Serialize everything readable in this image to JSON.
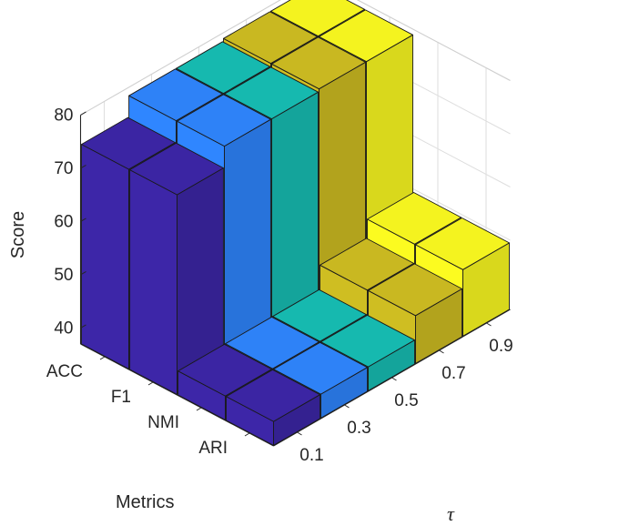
{
  "chart_data": {
    "type": "bar3d",
    "title": "",
    "zlabel": "Score",
    "metrics_label": "Metrics",
    "tau_label": "τ",
    "metrics": [
      "ACC",
      "F1",
      "NMI",
      "ARI"
    ],
    "tau": [
      "0.1",
      "0.3",
      "0.5",
      "0.7",
      "0.9"
    ],
    "zlim": [
      37,
      80
    ],
    "zticks": [
      "40",
      "50",
      "60",
      "70",
      "80"
    ],
    "grid": true,
    "colors": [
      "#3d26a8",
      "#2f86ff",
      "#17bfb4",
      "#cfbe22",
      "#fcfb20"
    ],
    "series": [
      {
        "name": "0.1",
        "values": [
          74.5,
          74.5,
          41.5,
          41.5
        ]
      },
      {
        "name": "0.3",
        "values": [
          78.5,
          78.5,
          41.5,
          41.5
        ]
      },
      {
        "name": "0.5",
        "values": [
          78.5,
          78.5,
          41.5,
          41.5
        ]
      },
      {
        "name": "0.7",
        "values": [
          79.0,
          79.0,
          46.0,
          46.0
        ]
      },
      {
        "name": "0.9",
        "values": [
          79.0,
          79.0,
          49.5,
          49.5
        ]
      }
    ]
  }
}
